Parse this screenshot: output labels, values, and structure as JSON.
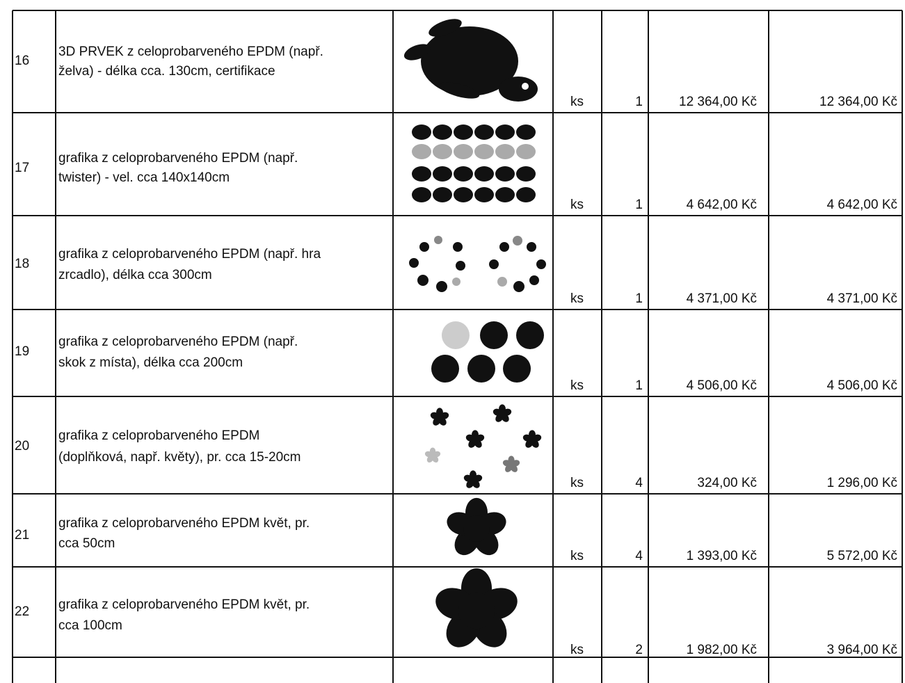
{
  "table": {
    "rows": [
      {
        "number": 16,
        "description": [
          "3D PRVEK z celoprobarveného EPDM  (např.",
          "želva)  - délka cca. 130cm, certifikace"
        ],
        "unit": "ks",
        "quantity": 1,
        "unit_price": "12 364,00 Kč",
        "total": "12 364,00 Kč"
      },
      {
        "number": 17,
        "description": [
          "grafika z celoprobarveného EPDM  (např.",
          "twister) - vel. cca 140x140cm"
        ],
        "unit": "ks",
        "quantity": 1,
        "unit_price": "4 642,00 Kč",
        "total": "4 642,00 Kč"
      },
      {
        "number": 18,
        "description": [
          "grafika z celoprobarveného EPDM (např. hra",
          "zrcadlo), délka cca 300cm"
        ],
        "unit": "ks",
        "quantity": 1,
        "unit_price": "4 371,00 Kč",
        "total": "4 371,00 Kč"
      },
      {
        "number": 19,
        "description": [
          "grafika z celoprobarveného EPDM (např.",
          "skok z místa), délka cca 200cm"
        ],
        "unit": "ks",
        "quantity": 1,
        "unit_price": "4 506,00 Kč",
        "total": "4 506,00 Kč"
      },
      {
        "number": 20,
        "description": [
          "grafika z celoprobarveného EPDM",
          "(doplňková, např. květy), pr. cca 15-20cm"
        ],
        "unit": "ks",
        "quantity": 4,
        "unit_price": "324,00 Kč",
        "total": "1 296,00 Kč"
      },
      {
        "number": 21,
        "description": [
          "grafika z celoprobarveného EPDM květ, pr.",
          "cca 50cm"
        ],
        "unit": "ks",
        "quantity": 4,
        "unit_price": "1 393,00 Kč",
        "total": "5 572,00 Kč"
      },
      {
        "number": 22,
        "description": [
          "grafika z celoprobarveného EPDM květ, pr.",
          "cca 100cm"
        ],
        "unit": "ks",
        "quantity": 2,
        "unit_price": "1 982,00 Kč",
        "total": "3 964,00 Kč"
      }
    ]
  }
}
